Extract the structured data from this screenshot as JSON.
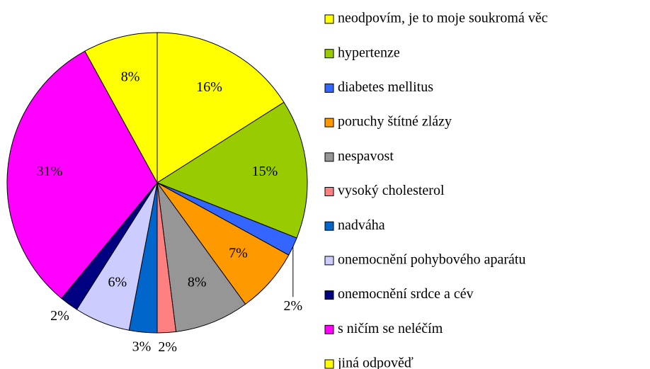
{
  "chart_data": {
    "type": "pie",
    "categories": [
      "neodpovím, je to moje soukromá věc",
      "hypertenze",
      "diabetes mellitus",
      "poruchy štítné zlázy",
      "nespavost",
      "vysoký cholesterol",
      "nadváha",
      "onemocnění pohybového aparátu",
      "onemocnění srdce a cév",
      "s ničím se neléčím",
      "jiná odpověď"
    ],
    "values": [
      16,
      15,
      2,
      7,
      8,
      2,
      3,
      6,
      2,
      31,
      8
    ],
    "value_labels": [
      "16%",
      "15%",
      "2%",
      "7%",
      "8%",
      "2%",
      "3%",
      "6%",
      "2%",
      "31%",
      "8%"
    ],
    "colors": [
      "#ffff00",
      "#99cc00",
      "#3366ff",
      "#ff9900",
      "#969696",
      "#ff8080",
      "#0066cc",
      "#ccccff",
      "#000080",
      "#ff00ff",
      "#ffff00"
    ],
    "legend": "right"
  }
}
